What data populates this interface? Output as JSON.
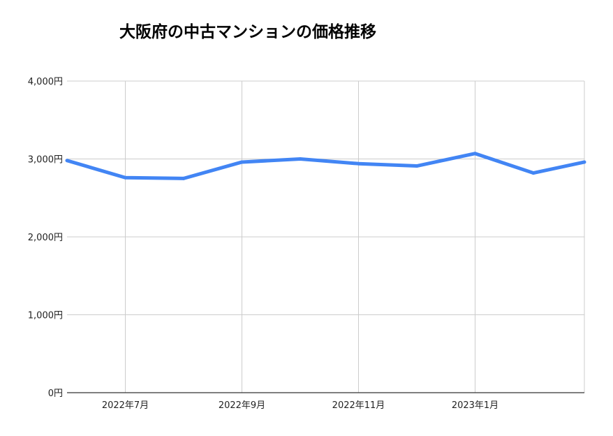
{
  "chart_data": {
    "type": "line",
    "title": "大阪府の中古マンションの価格推移",
    "xlabel": "",
    "ylabel": "",
    "ylim": [
      0,
      4000
    ],
    "y_ticks": [
      {
        "value": 0,
        "label": "0円"
      },
      {
        "value": 1000,
        "label": "1,000円"
      },
      {
        "value": 2000,
        "label": "2,000円"
      },
      {
        "value": 3000,
        "label": "3,000円"
      },
      {
        "value": 4000,
        "label": "4,000円"
      }
    ],
    "x": [
      "2022-06",
      "2022-07",
      "2022-08",
      "2022-09",
      "2022-10",
      "2022-11",
      "2022-12",
      "2023-01",
      "2023-02",
      "2023-03"
    ],
    "x_ticks": [
      {
        "x": "2022-07",
        "label": "2022年7月"
      },
      {
        "x": "2022-09",
        "label": "2022年9月"
      },
      {
        "x": "2022-11",
        "label": "2022年11月"
      },
      {
        "x": "2023-01",
        "label": "2023年1月"
      }
    ],
    "series": [
      {
        "color": "#4285f4",
        "values": [
          2980,
          2760,
          2750,
          2960,
          3000,
          2940,
          2910,
          3070,
          2820,
          2960
        ]
      }
    ],
    "grid": true,
    "legend": "none"
  }
}
